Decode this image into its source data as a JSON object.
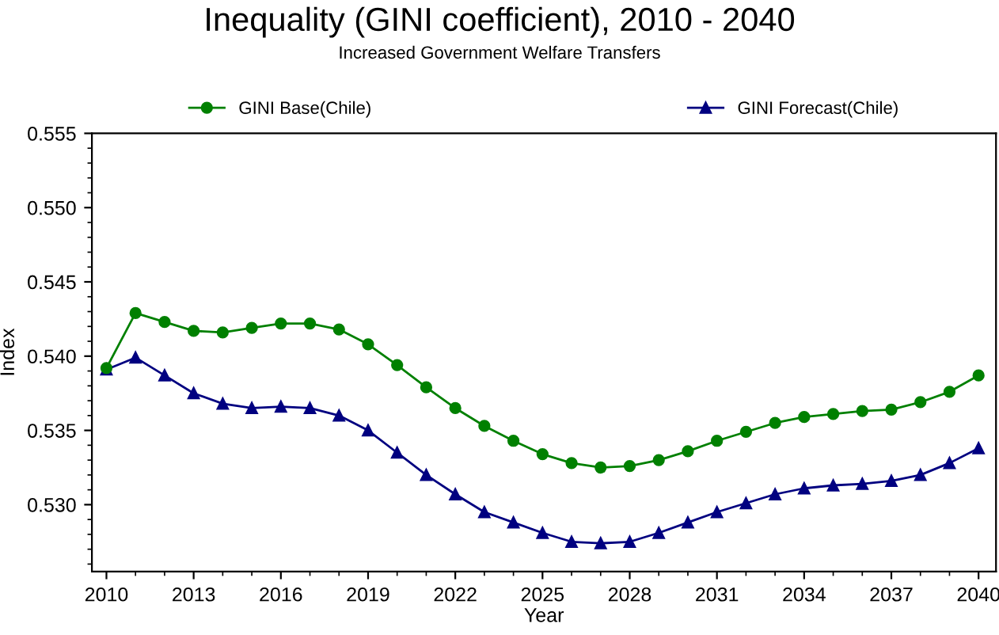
{
  "chart_data": {
    "type": "line",
    "title": "Inequality (GINI coefficient), 2010 - 2040",
    "subtitle": "Increased Government Welfare Transfers",
    "xlabel": "Year",
    "ylabel": "Index",
    "x": [
      2010,
      2011,
      2012,
      2013,
      2014,
      2015,
      2016,
      2017,
      2018,
      2019,
      2020,
      2021,
      2022,
      2023,
      2024,
      2025,
      2026,
      2027,
      2028,
      2029,
      2030,
      2031,
      2032,
      2033,
      2034,
      2035,
      2036,
      2037,
      2038,
      2039,
      2040
    ],
    "series": [
      {
        "name": "GINI Base(Chile)",
        "color": "#008000",
        "marker": "circle",
        "values": [
          0.5392,
          0.5429,
          0.5423,
          0.5417,
          0.5416,
          0.5419,
          0.5422,
          0.5422,
          0.5418,
          0.5408,
          0.5394,
          0.5379,
          0.5365,
          0.5353,
          0.5343,
          0.5334,
          0.5328,
          0.5325,
          0.5326,
          0.533,
          0.5336,
          0.5343,
          0.5349,
          0.5355,
          0.5359,
          0.5361,
          0.5363,
          0.5364,
          0.5369,
          0.5376,
          0.5387
        ]
      },
      {
        "name": "GINI Forecast(Chile)",
        "color": "#000080",
        "marker": "triangle",
        "values": [
          0.5391,
          0.5399,
          0.5387,
          0.5375,
          0.5368,
          0.5365,
          0.5366,
          0.5365,
          0.536,
          0.535,
          0.5335,
          0.532,
          0.5307,
          0.5295,
          0.5288,
          0.5281,
          0.5275,
          0.5274,
          0.5275,
          0.5281,
          0.5288,
          0.5295,
          0.5301,
          0.5307,
          0.5311,
          0.5313,
          0.5314,
          0.5316,
          0.532,
          0.5328,
          0.5338
        ]
      }
    ],
    "xlim": [
      2009.5,
      2040.6
    ],
    "xticks": [
      2010,
      2013,
      2016,
      2019,
      2022,
      2025,
      2028,
      2031,
      2034,
      2037,
      2040
    ],
    "ylim": [
      0.5255,
      0.555
    ],
    "yticks": [
      {
        "value": 0.53,
        "label": "0.530"
      },
      0.535,
      {
        "value": 0.54,
        "label": "0.540"
      },
      0.545,
      {
        "value": 0.55,
        "label": "0.550"
      },
      0.555
    ],
    "grid": false,
    "legend": "top",
    "line_style": "solid"
  }
}
